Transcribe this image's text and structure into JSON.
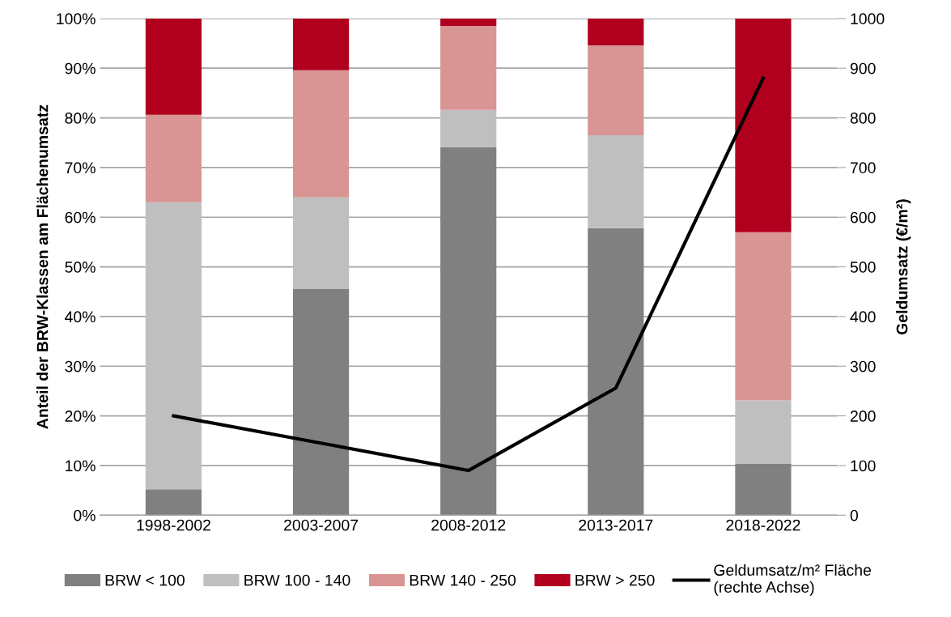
{
  "chart_data": {
    "type": "bar",
    "stacked": true,
    "ylabel": "Anteil der BRW-Klassen am Flächenumsatz",
    "y2label": "Geldumsatz (€/m²)",
    "categories": [
      "1998-2002",
      "2003-2007",
      "2008-2012",
      "2013-2017",
      "2018-2022"
    ],
    "series": [
      {
        "name": "BRW < 100",
        "color": "#808080",
        "values": [
          5.2,
          45.6,
          74.1,
          57.8,
          10.3
        ]
      },
      {
        "name": "BRW 100 - 140",
        "color": "#bfbfbf",
        "values": [
          57.8,
          18.4,
          7.5,
          18.7,
          12.8
        ]
      },
      {
        "name": "BRW 140 - 250",
        "color": "#d99594",
        "values": [
          17.6,
          25.6,
          16.9,
          18.1,
          33.9
        ]
      },
      {
        "name": "BRW > 250",
        "color": "#b0001e",
        "values": [
          19.4,
          10.4,
          1.5,
          5.4,
          43.0
        ]
      },
      {
        "name": "Geldumsatz/m² Fläche\n(rechte Achse)",
        "type": "line",
        "axis": "y2",
        "color": "#000000",
        "values": [
          200,
          145,
          90,
          256,
          880
        ]
      }
    ],
    "ylim": [
      0,
      100
    ],
    "yticks": [
      {
        "value": 0,
        "label": "0%"
      },
      {
        "value": 10,
        "label": "10%"
      },
      {
        "value": 20,
        "label": "20%"
      },
      {
        "value": 30,
        "label": "30%"
      },
      {
        "value": 40,
        "label": "40%"
      },
      {
        "value": 50,
        "label": "50%"
      },
      {
        "value": 60,
        "label": "60%"
      },
      {
        "value": 70,
        "label": "70%"
      },
      {
        "value": 80,
        "label": "80%"
      },
      {
        "value": 90,
        "label": "90%"
      },
      {
        "value": 100,
        "label": "100%"
      }
    ],
    "y2lim": [
      0,
      1000
    ],
    "y2ticks": [
      0,
      100,
      200,
      300,
      400,
      500,
      600,
      700,
      800,
      900,
      1000
    ],
    "grid": "y",
    "legend": "bottom",
    "marker": "none",
    "line_style": "solid"
  }
}
